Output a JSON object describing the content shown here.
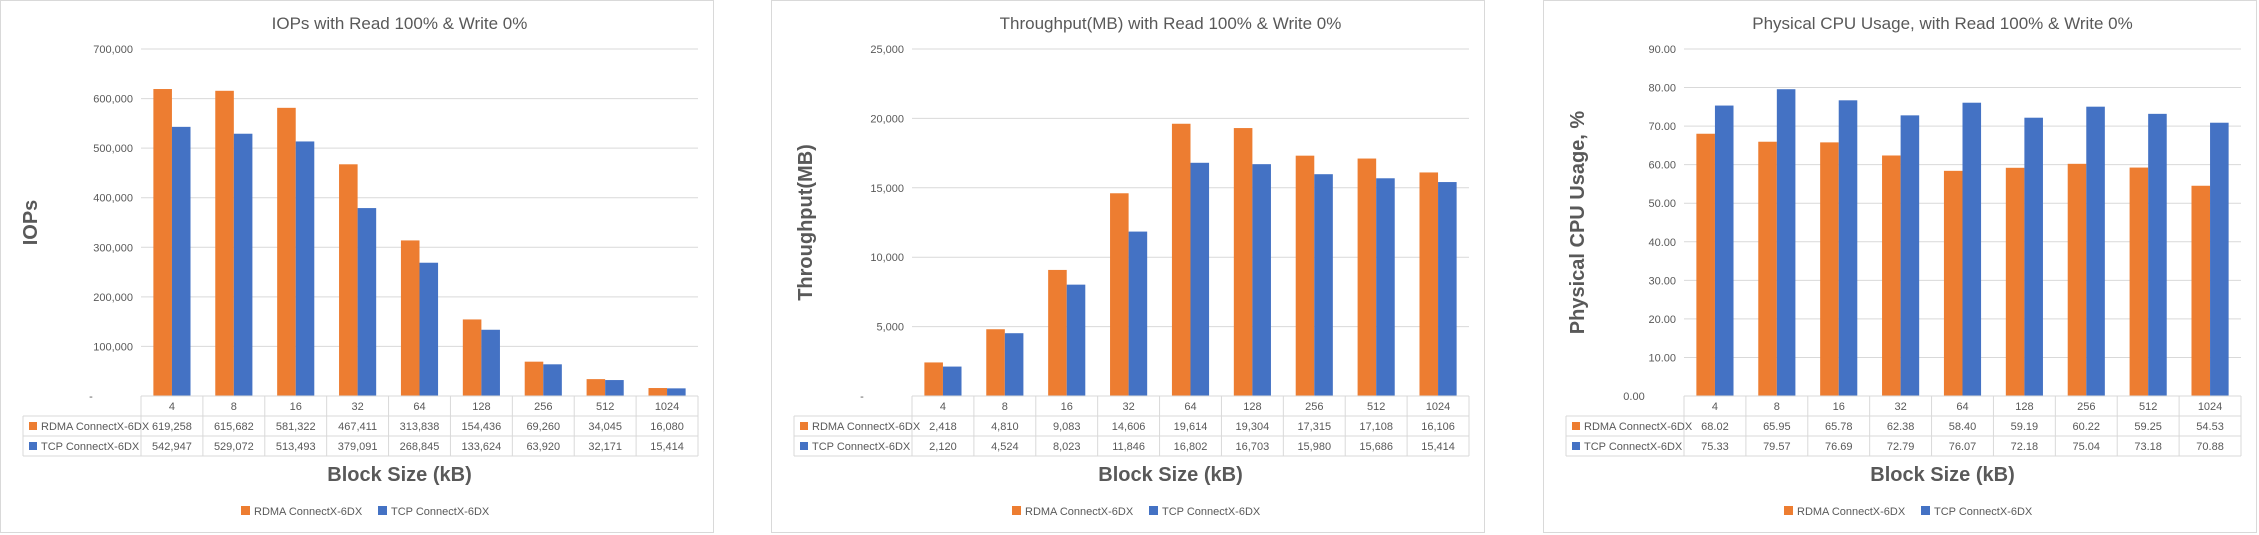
{
  "colors": {
    "rdma": "#ED7D31",
    "tcp": "#4472C4",
    "grid": "#d9d9d9",
    "text": "#595959"
  },
  "chart_data": [
    {
      "type": "bar",
      "title": "IOPs with Read 100% & Write 0%",
      "xlabel": "Block Size (kB)",
      "ylabel": "IOPs",
      "ylim": [
        0,
        700000
      ],
      "yticks": [
        "-",
        "100,000",
        "200,000",
        "300,000",
        "400,000",
        "500,000",
        "600,000",
        "700,000"
      ],
      "grid": true,
      "legend": "bottom",
      "categories": [
        "4",
        "8",
        "16",
        "32",
        "64",
        "128",
        "256",
        "512",
        "1024"
      ],
      "series": [
        {
          "name": "RDMA ConnectX-6DX",
          "values": [
            619258,
            615682,
            581322,
            467411,
            313838,
            154436,
            69260,
            34045,
            16080
          ],
          "labels": [
            "619,258",
            "615,682",
            "581,322",
            "467,411",
            "313,838",
            "154,436",
            "69,260",
            "34,045",
            "16,080"
          ]
        },
        {
          "name": "TCP ConnectX-6DX",
          "values": [
            542947,
            529072,
            513493,
            379091,
            268845,
            133624,
            63920,
            32171,
            15414
          ],
          "labels": [
            "542,947",
            "529,072",
            "513,493",
            "379,091",
            "268,845",
            "133,624",
            "63,920",
            "32,171",
            "15,414"
          ]
        }
      ]
    },
    {
      "type": "bar",
      "title": "Throughput(MB) with Read 100% & Write 0%",
      "xlabel": "Block Size (kB)",
      "ylabel": "Throughput(MB)",
      "ylim": [
        0,
        25000
      ],
      "yticks": [
        "-",
        "5,000",
        "10,000",
        "15,000",
        "20,000",
        "25,000"
      ],
      "grid": true,
      "legend": "bottom",
      "categories": [
        "4",
        "8",
        "16",
        "32",
        "64",
        "128",
        "256",
        "512",
        "1024"
      ],
      "series": [
        {
          "name": "RDMA ConnectX-6DX",
          "values": [
            2418,
            4810,
            9083,
            14606,
            19614,
            19304,
            17315,
            17108,
            16106
          ],
          "labels": [
            "2,418",
            "4,810",
            "9,083",
            "14,606",
            "19,614",
            "19,304",
            "17,315",
            "17,108",
            "16,106"
          ]
        },
        {
          "name": "TCP ConnectX-6DX",
          "values": [
            2120,
            4524,
            8023,
            11846,
            16802,
            16703,
            15980,
            15686,
            15414
          ],
          "labels": [
            "2,120",
            "4,524",
            "8,023",
            "11,846",
            "16,802",
            "16,703",
            "15,980",
            "15,686",
            "15,414"
          ]
        }
      ]
    },
    {
      "type": "bar",
      "title": "Physical CPU Usage, with Read 100% & Write 0%",
      "xlabel": "Block Size (kB)",
      "ylabel": "Physical CPU Usage, %",
      "ylim": [
        0,
        90
      ],
      "yticks": [
        "0.00",
        "10.00",
        "20.00",
        "30.00",
        "40.00",
        "50.00",
        "60.00",
        "70.00",
        "80.00",
        "90.00"
      ],
      "grid": true,
      "legend": "bottom",
      "categories": [
        "4",
        "8",
        "16",
        "32",
        "64",
        "128",
        "256",
        "512",
        "1024"
      ],
      "series": [
        {
          "name": "RDMA ConnectX-6DX",
          "values": [
            68.02,
            65.95,
            65.78,
            62.38,
            58.4,
            59.19,
            60.22,
            59.25,
            54.53
          ],
          "labels": [
            "68.02",
            "65.95",
            "65.78",
            "62.38",
            "58.40",
            "59.19",
            "60.22",
            "59.25",
            "54.53"
          ]
        },
        {
          "name": "TCP ConnectX-6DX",
          "values": [
            75.33,
            79.57,
            76.69,
            72.79,
            76.07,
            72.18,
            75.04,
            73.18,
            70.88
          ],
          "labels": [
            "75.33",
            "79.57",
            "76.69",
            "72.79",
            "76.07",
            "72.18",
            "75.04",
            "73.18",
            "70.88"
          ]
        }
      ]
    }
  ]
}
